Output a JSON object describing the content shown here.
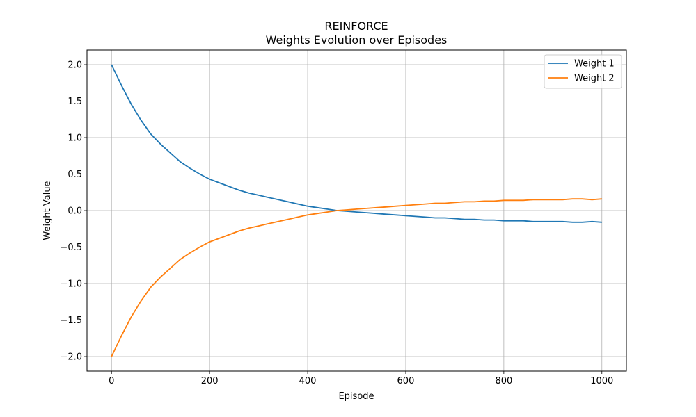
{
  "chart_data": {
    "type": "line",
    "title": "REINFORCE",
    "subtitle": "Weights Evolution over Episodes",
    "xlabel": "Episode",
    "ylabel": "Weight Value",
    "xlim": [
      -50,
      1050
    ],
    "ylim": [
      -2.2,
      2.2
    ],
    "xticks": [
      0,
      200,
      400,
      600,
      800,
      1000
    ],
    "yticks": [
      -2.0,
      -1.5,
      -1.0,
      -0.5,
      0.0,
      0.5,
      1.0,
      1.5,
      2.0
    ],
    "grid": true,
    "legend_position": "top-right",
    "series": [
      {
        "name": "Weight 1",
        "color": "#1f77b4",
        "x": [
          0,
          20,
          40,
          60,
          80,
          100,
          120,
          140,
          160,
          180,
          200,
          220,
          240,
          260,
          280,
          300,
          320,
          340,
          360,
          380,
          400,
          420,
          440,
          460,
          480,
          500,
          520,
          540,
          560,
          580,
          600,
          620,
          640,
          660,
          680,
          700,
          720,
          740,
          760,
          780,
          800,
          820,
          840,
          860,
          880,
          900,
          920,
          940,
          960,
          980,
          1000
        ],
        "values": [
          2.0,
          1.72,
          1.46,
          1.24,
          1.05,
          0.91,
          0.79,
          0.67,
          0.58,
          0.5,
          0.43,
          0.38,
          0.33,
          0.28,
          0.24,
          0.21,
          0.18,
          0.15,
          0.12,
          0.09,
          0.06,
          0.04,
          0.02,
          0.0,
          -0.01,
          -0.02,
          -0.03,
          -0.04,
          -0.05,
          -0.06,
          -0.07,
          -0.08,
          -0.09,
          -0.1,
          -0.1,
          -0.11,
          -0.12,
          -0.12,
          -0.13,
          -0.13,
          -0.14,
          -0.14,
          -0.14,
          -0.15,
          -0.15,
          -0.15,
          -0.15,
          -0.16,
          -0.16,
          -0.15,
          -0.16
        ]
      },
      {
        "name": "Weight 2",
        "color": "#ff7f0e",
        "x": [
          0,
          20,
          40,
          60,
          80,
          100,
          120,
          140,
          160,
          180,
          200,
          220,
          240,
          260,
          280,
          300,
          320,
          340,
          360,
          380,
          400,
          420,
          440,
          460,
          480,
          500,
          520,
          540,
          560,
          580,
          600,
          620,
          640,
          660,
          680,
          700,
          720,
          740,
          760,
          780,
          800,
          820,
          840,
          860,
          880,
          900,
          920,
          940,
          960,
          980,
          1000
        ],
        "values": [
          -2.0,
          -1.72,
          -1.46,
          -1.24,
          -1.05,
          -0.91,
          -0.79,
          -0.67,
          -0.58,
          -0.5,
          -0.43,
          -0.38,
          -0.33,
          -0.28,
          -0.24,
          -0.21,
          -0.18,
          -0.15,
          -0.12,
          -0.09,
          -0.06,
          -0.04,
          -0.02,
          0.0,
          0.01,
          0.02,
          0.03,
          0.04,
          0.05,
          0.06,
          0.07,
          0.08,
          0.09,
          0.1,
          0.1,
          0.11,
          0.12,
          0.12,
          0.13,
          0.13,
          0.14,
          0.14,
          0.14,
          0.15,
          0.15,
          0.15,
          0.15,
          0.16,
          0.16,
          0.15,
          0.16
        ]
      }
    ]
  }
}
